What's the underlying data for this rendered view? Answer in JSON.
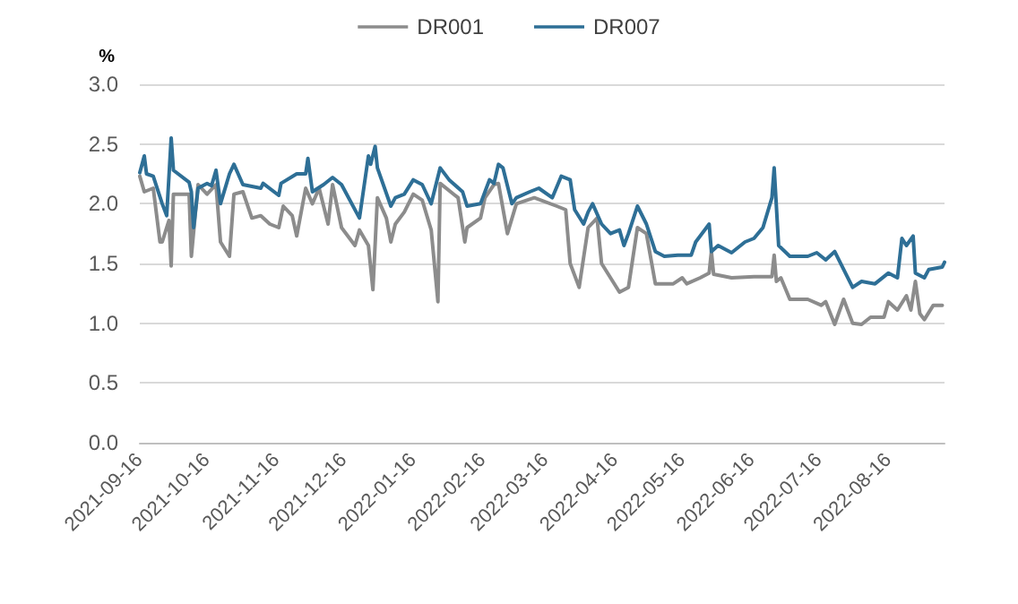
{
  "chart_data": {
    "type": "line",
    "ylabel": "%",
    "legend": "top",
    "grid": "y",
    "marker": "none",
    "line_style": "solid",
    "xlim": [
      "2021-09-16",
      "2022-09-10"
    ],
    "xticks": [
      "2021-09-16",
      "2021-10-16",
      "2021-11-16",
      "2021-12-16",
      "2022-01-16",
      "2022-02-16",
      "2022-03-16",
      "2022-04-16",
      "2022-05-16",
      "2022-06-16",
      "2022-07-16",
      "2022-08-16"
    ],
    "ylim": [
      0,
      3
    ],
    "yticks": [
      {
        "value": 0,
        "label": "0.0"
      },
      {
        "value": 0.5,
        "label": "0.5"
      },
      {
        "value": 1,
        "label": "1.0"
      },
      {
        "value": 1.5,
        "label": "1.5"
      },
      {
        "value": 2,
        "label": "2.0"
      },
      {
        "value": 2.5,
        "label": "2.5"
      },
      {
        "value": 3,
        "label": "3.0"
      }
    ],
    "series": [
      {
        "name": "DR001",
        "color": "#8c8c8c",
        "x": [
          "2021-09-16",
          "2021-09-18",
          "2021-09-22",
          "2021-09-25",
          "2021-09-26",
          "2021-09-29",
          "2021-09-30",
          "2021-10-01",
          "2021-10-08",
          "2021-10-09",
          "2021-10-12",
          "2021-10-16",
          "2021-10-20",
          "2021-10-22",
          "2021-10-26",
          "2021-10-28",
          "2021-11-01",
          "2021-11-05",
          "2021-11-09",
          "2021-11-13",
          "2021-11-17",
          "2021-11-19",
          "2021-11-23",
          "2021-11-25",
          "2021-11-29",
          "2021-12-02",
          "2021-12-05",
          "2021-12-09",
          "2021-12-11",
          "2021-12-15",
          "2021-12-21",
          "2021-12-23",
          "2021-12-27",
          "2021-12-29",
          "2021-12-31",
          "2022-01-04",
          "2022-01-06",
          "2022-01-08",
          "2022-01-12",
          "2022-01-16",
          "2022-01-20",
          "2022-01-24",
          "2022-01-27",
          "2022-01-28",
          "2022-02-05",
          "2022-02-08",
          "2022-02-09",
          "2022-02-15",
          "2022-02-17",
          "2022-02-21",
          "2022-02-23",
          "2022-02-27",
          "2022-03-03",
          "2022-03-11",
          "2022-03-21",
          "2022-03-25",
          "2022-03-27",
          "2022-03-31",
          "2022-04-04",
          "2022-04-08",
          "2022-04-10",
          "2022-04-14",
          "2022-04-18",
          "2022-04-22",
          "2022-04-26",
          "2022-04-30",
          "2022-05-04",
          "2022-05-12",
          "2022-05-16",
          "2022-05-18",
          "2022-05-24",
          "2022-05-28",
          "2022-05-29",
          "2022-05-30",
          "2022-06-07",
          "2022-06-17",
          "2022-06-25",
          "2022-06-26",
          "2022-06-27",
          "2022-06-29",
          "2022-07-03",
          "2022-07-11",
          "2022-07-17",
          "2022-07-19",
          "2022-07-23",
          "2022-07-27",
          "2022-07-31",
          "2022-08-04",
          "2022-08-08",
          "2022-08-14",
          "2022-08-16",
          "2022-08-20",
          "2022-08-24",
          "2022-08-26",
          "2022-08-28",
          "2022-08-30",
          "2022-09-01",
          "2022-09-05",
          "2022-09-09"
        ],
        "values": [
          2.23,
          2.1,
          2.13,
          1.68,
          1.68,
          1.86,
          1.48,
          2.08,
          2.08,
          1.56,
          2.16,
          2.08,
          2.16,
          1.68,
          1.56,
          2.08,
          2.1,
          1.88,
          1.9,
          1.83,
          1.8,
          1.98,
          1.9,
          1.73,
          2.13,
          2.0,
          2.13,
          1.83,
          2.16,
          1.8,
          1.65,
          1.78,
          1.65,
          1.28,
          2.05,
          1.88,
          1.68,
          1.83,
          1.93,
          2.08,
          2.03,
          1.78,
          1.18,
          2.17,
          2.05,
          1.68,
          1.8,
          1.88,
          2.05,
          2.16,
          2.17,
          1.75,
          2.0,
          2.05,
          1.98,
          1.95,
          1.5,
          1.3,
          1.8,
          1.88,
          1.5,
          1.38,
          1.26,
          1.3,
          1.8,
          1.75,
          1.33,
          1.33,
          1.38,
          1.33,
          1.38,
          1.42,
          1.6,
          1.41,
          1.38,
          1.39,
          1.39,
          1.57,
          1.35,
          1.38,
          1.2,
          1.2,
          1.15,
          1.18,
          0.99,
          1.2,
          1.0,
          0.99,
          1.05,
          1.05,
          1.18,
          1.11,
          1.23,
          1.11,
          1.35,
          1.08,
          1.03,
          1.15,
          1.15
        ]
      },
      {
        "name": "DR007",
        "color": "#2e6f96",
        "x": [
          "2021-09-16",
          "2021-09-18",
          "2021-09-19",
          "2021-09-22",
          "2021-09-26",
          "2021-09-28",
          "2021-09-30",
          "2021-10-01",
          "2021-10-08",
          "2021-10-09",
          "2021-10-10",
          "2021-10-12",
          "2021-10-16",
          "2021-10-18",
          "2021-10-20",
          "2021-10-22",
          "2021-10-26",
          "2021-10-28",
          "2021-11-01",
          "2021-11-09",
          "2021-11-10",
          "2021-11-17",
          "2021-11-18",
          "2021-11-25",
          "2021-11-29",
          "2021-11-30",
          "2021-12-02",
          "2021-12-07",
          "2021-12-11",
          "2021-12-15",
          "2021-12-23",
          "2021-12-27",
          "2021-12-28",
          "2021-12-30",
          "2021-12-31",
          "2022-01-06",
          "2022-01-08",
          "2022-01-12",
          "2022-01-16",
          "2022-01-20",
          "2022-01-24",
          "2022-01-28",
          "2022-02-01",
          "2022-02-07",
          "2022-02-09",
          "2022-02-15",
          "2022-02-17",
          "2022-02-19",
          "2022-02-21",
          "2022-02-23",
          "2022-02-25",
          "2022-03-01",
          "2022-03-03",
          "2022-03-09",
          "2022-03-13",
          "2022-03-19",
          "2022-03-23",
          "2022-03-27",
          "2022-03-29",
          "2022-04-02",
          "2022-04-04",
          "2022-04-06",
          "2022-04-10",
          "2022-04-14",
          "2022-04-18",
          "2022-04-20",
          "2022-04-22",
          "2022-04-26",
          "2022-04-30",
          "2022-05-04",
          "2022-05-08",
          "2022-05-14",
          "2022-05-20",
          "2022-05-22",
          "2022-05-28",
          "2022-05-29",
          "2022-06-01",
          "2022-06-07",
          "2022-06-13",
          "2022-06-17",
          "2022-06-21",
          "2022-06-25",
          "2022-06-26",
          "2022-06-28",
          "2022-07-03",
          "2022-07-11",
          "2022-07-15",
          "2022-07-19",
          "2022-07-23",
          "2022-07-31",
          "2022-08-04",
          "2022-08-10",
          "2022-08-16",
          "2022-08-20",
          "2022-08-22",
          "2022-08-24",
          "2022-08-27",
          "2022-08-28",
          "2022-09-01",
          "2022-09-03",
          "2022-09-09",
          "2022-09-10"
        ],
        "values": [
          2.26,
          2.4,
          2.25,
          2.23,
          2.0,
          1.9,
          2.55,
          2.28,
          2.18,
          2.1,
          1.8,
          2.13,
          2.17,
          2.15,
          2.28,
          2.0,
          2.25,
          2.33,
          2.16,
          2.13,
          2.17,
          2.07,
          2.17,
          2.25,
          2.25,
          2.38,
          2.1,
          2.16,
          2.22,
          2.16,
          1.88,
          2.4,
          2.33,
          2.48,
          2.3,
          1.98,
          2.05,
          2.08,
          2.2,
          2.16,
          2.0,
          2.3,
          2.2,
          2.1,
          1.98,
          2.0,
          2.1,
          2.2,
          2.17,
          2.33,
          2.3,
          2.0,
          2.05,
          2.1,
          2.13,
          2.05,
          2.23,
          2.2,
          1.95,
          1.83,
          1.93,
          2.0,
          1.83,
          1.75,
          1.78,
          1.65,
          1.75,
          1.98,
          1.83,
          1.6,
          1.56,
          1.57,
          1.57,
          1.68,
          1.83,
          1.6,
          1.65,
          1.59,
          1.68,
          1.71,
          1.8,
          2.05,
          2.3,
          1.65,
          1.56,
          1.56,
          1.59,
          1.53,
          1.6,
          1.3,
          1.35,
          1.33,
          1.42,
          1.38,
          1.71,
          1.65,
          1.73,
          1.42,
          1.38,
          1.45,
          1.47,
          1.51
        ]
      }
    ]
  }
}
